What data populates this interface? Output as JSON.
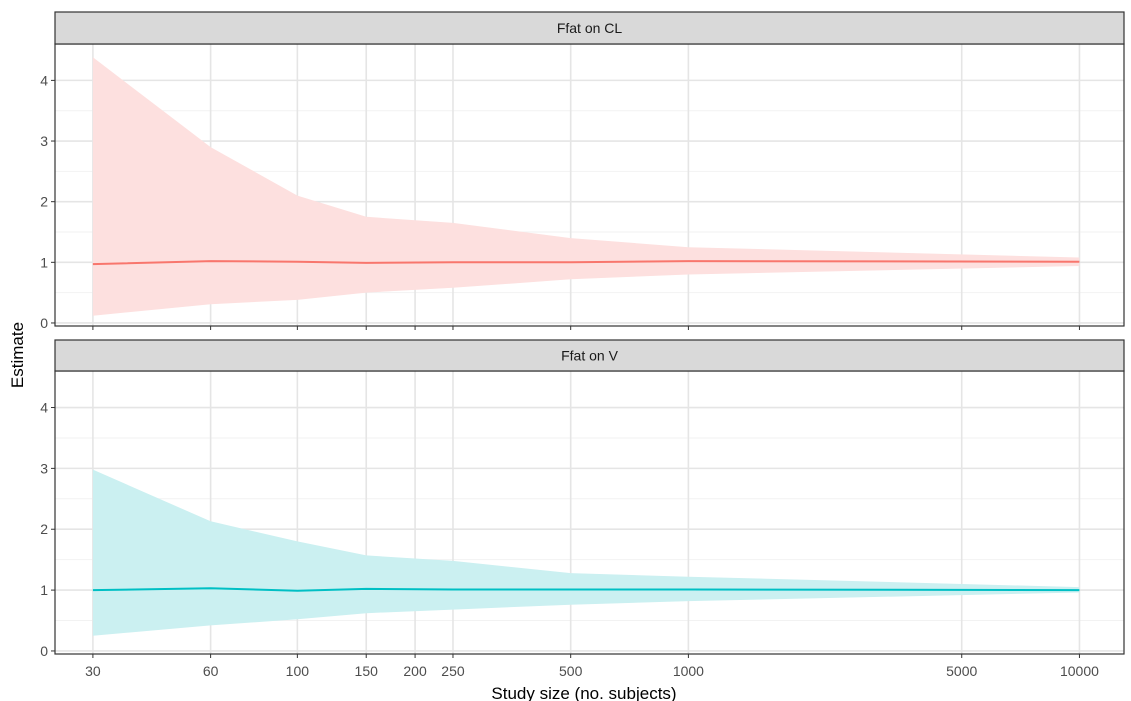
{
  "chart_data": {
    "type": "line",
    "xlabel": "Study size (no. subjects)",
    "ylabel": "Estimate",
    "x_scale": "log",
    "x_ticks": [
      30,
      60,
      100,
      150,
      200,
      250,
      500,
      1000,
      5000,
      10000
    ],
    "x_range": [
      24,
      13000
    ],
    "y_ticks": [
      0,
      1,
      2,
      3,
      4
    ],
    "y_range": [
      -0.05,
      4.6
    ],
    "grid": true,
    "legend": "none",
    "facets": [
      {
        "label": "Ffat on CL",
        "color": "#F8766D",
        "fill": "#FDE0DF",
        "x": [
          30,
          60,
          100,
          150,
          250,
          500,
          1000,
          10000
        ],
        "estimate": [
          0.97,
          1.02,
          1.01,
          0.99,
          1.0,
          1.0,
          1.02,
          1.01
        ],
        "lower": [
          0.12,
          0.31,
          0.38,
          0.5,
          0.58,
          0.72,
          0.8,
          0.94
        ],
        "upper": [
          4.38,
          2.9,
          2.1,
          1.75,
          1.65,
          1.4,
          1.25,
          1.08
        ]
      },
      {
        "label": "Ffat on V",
        "color": "#00BFC4",
        "fill": "#CBF0F1",
        "x": [
          30,
          60,
          100,
          150,
          250,
          500,
          1000,
          10000
        ],
        "estimate": [
          1.0,
          1.03,
          0.99,
          1.02,
          1.01,
          1.01,
          1.01,
          1.0
        ],
        "lower": [
          0.25,
          0.42,
          0.52,
          0.62,
          0.68,
          0.76,
          0.82,
          0.96
        ],
        "upper": [
          2.98,
          2.13,
          1.8,
          1.57,
          1.48,
          1.28,
          1.22,
          1.05
        ]
      }
    ]
  }
}
